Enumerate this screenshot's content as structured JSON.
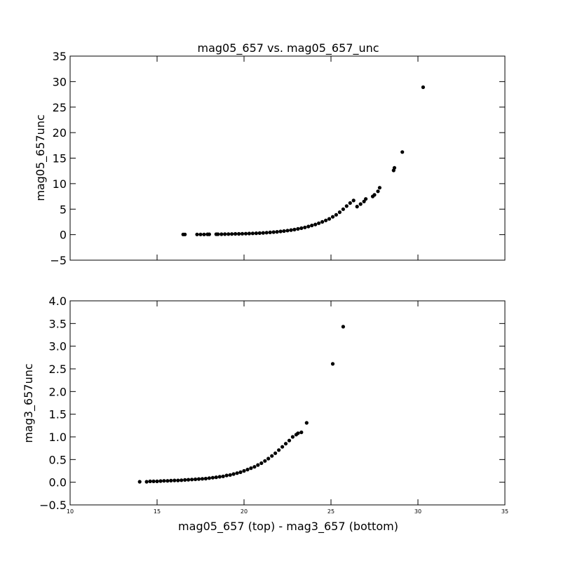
{
  "chart_data": [
    {
      "type": "scatter",
      "title": "mag05_657 vs. mag05_657_unc",
      "xlabel": "",
      "ylabel": "mag05_657unc",
      "xlim": [
        10,
        35
      ],
      "ylim": [
        -5,
        35
      ],
      "yticks": [
        -5,
        0,
        5,
        10,
        15,
        20,
        25,
        30,
        35
      ],
      "ytick_labels": [
        "−5",
        "0",
        "5",
        "10",
        "15",
        "20",
        "25",
        "30",
        "35"
      ],
      "xtick_labels_visible": false,
      "marker_color": "#000000",
      "grid": false,
      "points": {
        "x": [
          16.5,
          16.6,
          17.3,
          17.5,
          17.7,
          17.9,
          18.0,
          18.4,
          18.5,
          18.7,
          18.9,
          19.1,
          19.3,
          19.5,
          19.7,
          19.9,
          20.1,
          20.3,
          20.5,
          20.7,
          20.9,
          21.1,
          21.3,
          21.5,
          21.7,
          21.9,
          22.1,
          22.3,
          22.5,
          22.7,
          22.9,
          23.1,
          23.3,
          23.5,
          23.7,
          23.9,
          24.1,
          24.3,
          24.5,
          24.7,
          24.9,
          25.1,
          25.3,
          25.5,
          25.7,
          25.9,
          26.1,
          26.3,
          26.5,
          26.7,
          26.9,
          27.0,
          27.4,
          27.5,
          27.7,
          27.8,
          28.6,
          28.65,
          29.1,
          30.3
        ],
        "y": [
          0.05,
          0.05,
          0.05,
          0.05,
          0.05,
          0.07,
          0.07,
          0.08,
          0.08,
          0.09,
          0.1,
          0.12,
          0.13,
          0.15,
          0.16,
          0.18,
          0.2,
          0.22,
          0.25,
          0.28,
          0.31,
          0.35,
          0.39,
          0.44,
          0.5,
          0.56,
          0.63,
          0.71,
          0.8,
          0.9,
          1.0,
          1.13,
          1.27,
          1.42,
          1.6,
          1.8,
          2.0,
          2.25,
          2.5,
          2.8,
          3.1,
          3.5,
          3.9,
          4.4,
          5.0,
          5.6,
          6.2,
          6.7,
          5.5,
          6.0,
          6.5,
          7.0,
          7.5,
          7.8,
          8.5,
          9.2,
          12.6,
          13.1,
          16.2,
          28.9
        ]
      }
    },
    {
      "type": "scatter",
      "title": "",
      "xlabel": "mag05_657 (top) - mag3_657 (bottom)",
      "ylabel": "mag3_657unc",
      "xlim": [
        10,
        35
      ],
      "ylim": [
        -0.5,
        4.0
      ],
      "xticks": [
        10,
        15,
        20,
        25,
        30,
        35
      ],
      "xtick_labels": [
        "10",
        "15",
        "20",
        "25",
        "30",
        "35"
      ],
      "yticks": [
        -0.5,
        0.0,
        0.5,
        1.0,
        1.5,
        2.0,
        2.5,
        3.0,
        3.5,
        4.0
      ],
      "ytick_labels": [
        "−0.5",
        "0.0",
        "0.5",
        "1.0",
        "1.5",
        "2.0",
        "2.5",
        "3.0",
        "3.5",
        "4.0"
      ],
      "marker_color": "#000000",
      "grid": false,
      "points": {
        "x": [
          14.0,
          14.4,
          14.6,
          14.8,
          15.0,
          15.2,
          15.4,
          15.6,
          15.8,
          16.0,
          16.2,
          16.4,
          16.6,
          16.8,
          17.0,
          17.2,
          17.4,
          17.6,
          17.8,
          18.0,
          18.2,
          18.4,
          18.6,
          18.8,
          19.0,
          19.2,
          19.4,
          19.6,
          19.8,
          20.0,
          20.2,
          20.4,
          20.6,
          20.8,
          21.0,
          21.2,
          21.4,
          21.6,
          21.8,
          22.0,
          22.2,
          22.4,
          22.6,
          22.8,
          23.0,
          23.1,
          23.3,
          23.6,
          25.1,
          25.7
        ],
        "y": [
          0.01,
          0.01,
          0.02,
          0.02,
          0.02,
          0.025,
          0.03,
          0.03,
          0.035,
          0.04,
          0.04,
          0.045,
          0.05,
          0.055,
          0.06,
          0.065,
          0.07,
          0.075,
          0.08,
          0.09,
          0.1,
          0.11,
          0.12,
          0.13,
          0.15,
          0.16,
          0.18,
          0.2,
          0.22,
          0.25,
          0.28,
          0.31,
          0.34,
          0.38,
          0.42,
          0.47,
          0.52,
          0.58,
          0.64,
          0.71,
          0.78,
          0.85,
          0.92,
          1.0,
          1.05,
          1.08,
          1.1,
          1.31,
          2.61,
          3.43
        ]
      }
    }
  ]
}
